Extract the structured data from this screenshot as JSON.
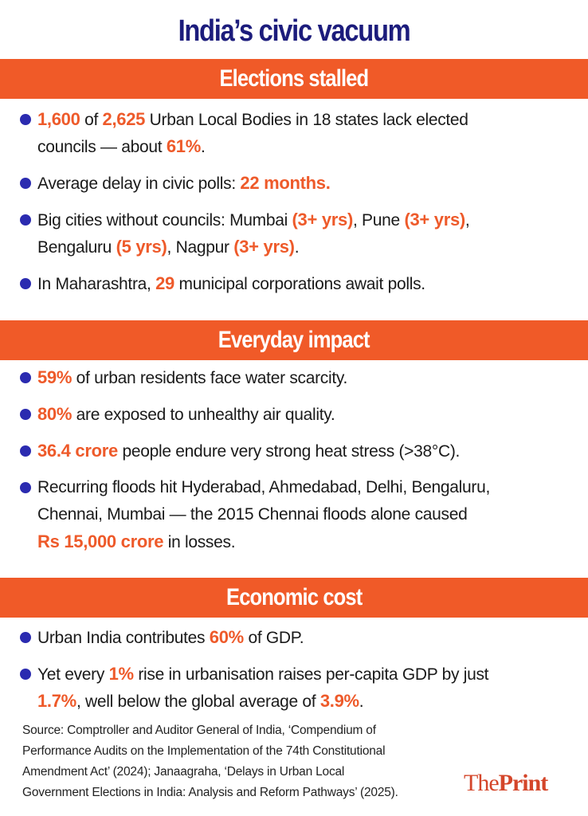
{
  "title": "India’s civic vacuum",
  "colors": {
    "banner": "#f05a28",
    "highlight": "#ee5a2a",
    "title": "#1c1c7c",
    "bullet": "#2b2bb0"
  },
  "sections": [
    {
      "heading": "Elections stalled",
      "bullets": [
        [
          [
            {
              "t": "1,600",
              "h": true
            },
            {
              "t": " of "
            },
            {
              "t": "2,625",
              "h": true
            },
            {
              "t": " Urban Local Bodies in 18 states lack elected"
            }
          ],
          [
            {
              "t": "councils — about "
            },
            {
              "t": "61%",
              "h": true
            },
            {
              "t": "."
            }
          ]
        ],
        [
          [
            {
              "t": "Average delay in civic polls: "
            },
            {
              "t": "22 months.",
              "h": true
            }
          ]
        ],
        [
          [
            {
              "t": "Big cities without councils: Mumbai "
            },
            {
              "t": "(3+ yrs)",
              "h": true
            },
            {
              "t": ", Pune "
            },
            {
              "t": "(3+ yrs)",
              "h": true
            },
            {
              "t": ","
            }
          ],
          [
            {
              "t": "Bengaluru "
            },
            {
              "t": "(5 yrs)",
              "h": true
            },
            {
              "t": ", Nagpur "
            },
            {
              "t": "(3+ yrs)",
              "h": true
            },
            {
              "t": "."
            }
          ]
        ],
        [
          [
            {
              "t": "In Maharashtra, "
            },
            {
              "t": "29",
              "h": true
            },
            {
              "t": " municipal corporations await polls."
            }
          ]
        ]
      ]
    },
    {
      "heading": "Everyday impact",
      "bullets": [
        [
          [
            {
              "t": "59%",
              "h": true
            },
            {
              "t": " of urban residents face water scarcity."
            }
          ]
        ],
        [
          [
            {
              "t": "80%",
              "h": true
            },
            {
              "t": " are exposed to unhealthy air quality."
            }
          ]
        ],
        [
          [
            {
              "t": "36.4 crore",
              "h": true
            },
            {
              "t": " people endure very strong heat stress (>38°C)."
            }
          ]
        ],
        [
          [
            {
              "t": "Recurring floods hit Hyderabad, Ahmedabad, Delhi, Bengaluru,"
            }
          ],
          [
            {
              "t": "Chennai, Mumbai — the 2015 Chennai floods alone caused"
            }
          ],
          [
            {
              "t": "Rs 15,000 crore",
              "h": true
            },
            {
              "t": " in losses."
            }
          ]
        ]
      ]
    },
    {
      "heading": "Economic cost",
      "bullets": [
        [
          [
            {
              "t": "Urban India contributes "
            },
            {
              "t": "60%",
              "h": true
            },
            {
              "t": " of GDP."
            }
          ]
        ],
        [
          [
            {
              "t": "Yet every "
            },
            {
              "t": "1%",
              "h": true
            },
            {
              "t": " rise in urbanisation raises per-capita GDP by just"
            }
          ],
          [
            {
              "t": "1.7%",
              "h": true
            },
            {
              "t": ", well below the global average of "
            },
            {
              "t": "3.9%",
              "h": true
            },
            {
              "t": "."
            }
          ]
        ]
      ]
    }
  ],
  "source": [
    "Source: Comptroller and Auditor General of India, ‘Compendium of",
    "Performance Audits on the Implementation of the 74th Constitutional",
    "Amendment Act’ (2024); Janaagraha, ‘Delays in Urban Local",
    "Government Elections in India: Analysis and Reform Pathways’ (2025)."
  ],
  "logo": {
    "part1": "The",
    "part2": "Print"
  }
}
